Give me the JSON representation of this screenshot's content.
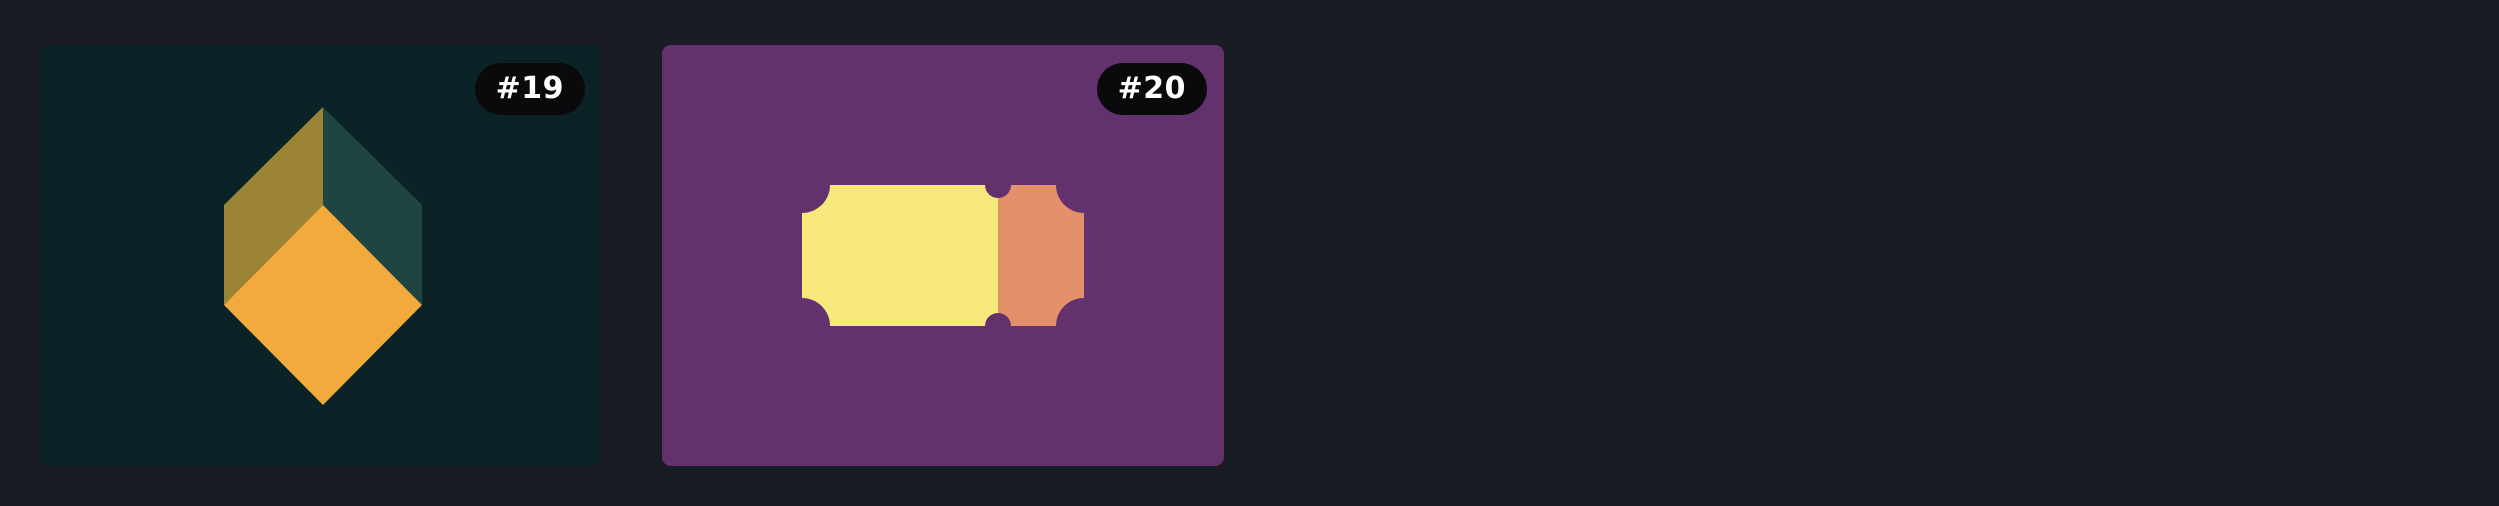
{
  "cards": [
    {
      "badge": "#19",
      "artwork_icon": "isometric-cube-icon",
      "colors": {
        "background": "#0b2326",
        "left_face": "#9c8436",
        "right_face": "#1e4542",
        "front_face": "#f3aa3c"
      }
    },
    {
      "badge": "#20",
      "artwork_icon": "ticket-icon",
      "colors": {
        "background": "#63326e",
        "ticket_main": "#f6e87c",
        "ticket_stub": "#e4906a"
      }
    }
  ],
  "colors": {
    "page_background": "#191c23",
    "badge_background": "#0a0a0d",
    "badge_text": "#ffffff"
  }
}
